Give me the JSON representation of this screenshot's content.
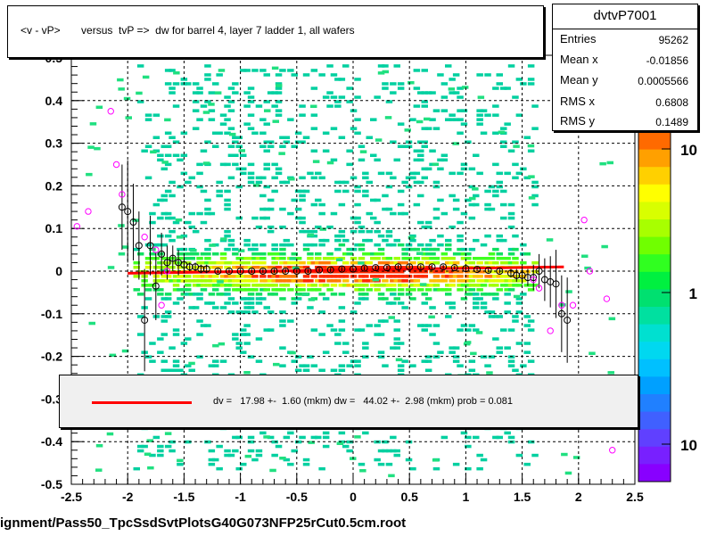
{
  "title": "<v - vP>       versus  tvP =>  dw for barrel 4, layer 7 ladder 1, all wafers",
  "stats": {
    "name": "dvtvP7001",
    "rows": [
      {
        "label": "Entries",
        "value": "95262"
      },
      {
        "label": "Mean x",
        "value": "-0.01856"
      },
      {
        "label": "Mean y",
        "value": "0.0005566"
      },
      {
        "label": "RMS x",
        "value": "0.6808"
      },
      {
        "label": "RMS y",
        "value": "0.1489"
      }
    ]
  },
  "fit_text": "dv =   17.98 +-  1.60 (mkm) dw =   44.02 +-  2.98 (mkm) prob = 0.081",
  "file_caption": "ignment/Pass50_TpcSsdSvtPlotsG40G073NFP25rCut0.5cm.root",
  "colors": {
    "fit_line": "#ff0000",
    "profile_marker": "#000000",
    "outlier_marker": "#ff00ff"
  },
  "chart_data": {
    "type": "heatmap",
    "x_range": [
      -2.5,
      2.5
    ],
    "y_range": [
      -0.5,
      0.5
    ],
    "x_ticks": [
      {
        "v": -2.5,
        "label": "-2.5"
      },
      {
        "v": -2,
        "label": "-2"
      },
      {
        "v": -1.5,
        "label": "-1.5"
      },
      {
        "v": -1,
        "label": "-1"
      },
      {
        "v": -0.5,
        "label": "-0.5"
      },
      {
        "v": 0,
        "label": "0"
      },
      {
        "v": 0.5,
        "label": "0.5"
      },
      {
        "v": 1,
        "label": "1"
      },
      {
        "v": 1.5,
        "label": "1.5"
      },
      {
        "v": 2,
        "label": "2"
      },
      {
        "v": 2.5,
        "label": "2.5"
      }
    ],
    "y_ticks": [
      {
        "v": -0.5,
        "label": "-0.5"
      },
      {
        "v": -0.4,
        "label": "-0.4"
      },
      {
        "v": -0.3,
        "label": "-0.3"
      },
      {
        "v": -0.2,
        "label": "-0.2"
      },
      {
        "v": -0.1,
        "label": "-0.1"
      },
      {
        "v": 0,
        "label": "0"
      },
      {
        "v": 0.1,
        "label": "0.1"
      },
      {
        "v": 0.2,
        "label": "0.2"
      },
      {
        "v": 0.3,
        "label": "0.3"
      },
      {
        "v": 0.4,
        "label": "0.4"
      }
    ],
    "y_top_partial_label": "0.5",
    "grid": true,
    "colorbar_labels": [
      "10",
      "1",
      "10"
    ],
    "fit_line": {
      "x": [
        -2,
        1.87
      ],
      "y": [
        -0.005,
        0.01
      ]
    },
    "profile": {
      "x": [
        -2.05,
        -2.0,
        -1.95,
        -1.9,
        -1.85,
        -1.8,
        -1.75,
        -1.7,
        -1.65,
        -1.6,
        -1.55,
        -1.5,
        -1.45,
        -1.4,
        -1.35,
        -1.3,
        -1.2,
        -1.1,
        -1.0,
        -0.9,
        -0.8,
        -0.7,
        -0.6,
        -0.5,
        -0.4,
        -0.3,
        -0.2,
        -0.1,
        0.0,
        0.1,
        0.2,
        0.3,
        0.4,
        0.5,
        0.6,
        0.7,
        0.8,
        0.9,
        1.0,
        1.1,
        1.2,
        1.3,
        1.4,
        1.45,
        1.5,
        1.55,
        1.6,
        1.65,
        1.7,
        1.75,
        1.8,
        1.85,
        1.9
      ],
      "y": [
        0.15,
        0.14,
        0.115,
        0.06,
        -0.115,
        0.06,
        -0.035,
        0.04,
        0.02,
        0.03,
        0.02,
        0.015,
        0.01,
        0.01,
        0.005,
        0.005,
        0.0,
        0.0,
        0.0,
        0.0,
        0.0,
        0.0,
        0.0,
        0.0,
        0.0,
        0.003,
        0.003,
        0.005,
        0.005,
        0.007,
        0.008,
        0.008,
        0.01,
        0.01,
        0.01,
        0.01,
        0.01,
        0.008,
        0.006,
        0.004,
        0.002,
        0.0,
        -0.005,
        -0.01,
        -0.01,
        -0.015,
        -0.015,
        0.0,
        -0.02,
        -0.025,
        -0.03,
        -0.1,
        -0.115
      ],
      "err": [
        0.1,
        0.12,
        0.09,
        0.08,
        0.12,
        0.07,
        0.08,
        0.05,
        0.04,
        0.03,
        0.03,
        0.02,
        0.01,
        0.01,
        0.01,
        0.01,
        0.005,
        0.005,
        0.005,
        0.005,
        0.005,
        0.005,
        0.005,
        0.005,
        0.005,
        0.005,
        0.005,
        0.005,
        0.005,
        0.005,
        0.005,
        0.005,
        0.005,
        0.005,
        0.005,
        0.005,
        0.005,
        0.005,
        0.005,
        0.005,
        0.005,
        0.005,
        0.01,
        0.015,
        0.02,
        0.02,
        0.03,
        0.04,
        0.05,
        0.06,
        0.08,
        0.09,
        0.1
      ]
    },
    "outliers": {
      "x": [
        -2.45,
        -2.35,
        -2.15,
        -2.1,
        -2.05,
        -1.85,
        -1.75,
        -1.65,
        -1.7,
        1.6,
        1.65,
        1.75,
        1.85,
        1.95,
        2.05,
        2.1,
        2.25,
        2.3
      ],
      "y": [
        0.105,
        0.14,
        0.375,
        0.25,
        0.18,
        0.08,
        0.05,
        0.0,
        -0.08,
        -0.02,
        -0.04,
        -0.14,
        -0.08,
        -0.08,
        0.12,
        0.0,
        -0.065,
        -0.42
      ]
    }
  }
}
